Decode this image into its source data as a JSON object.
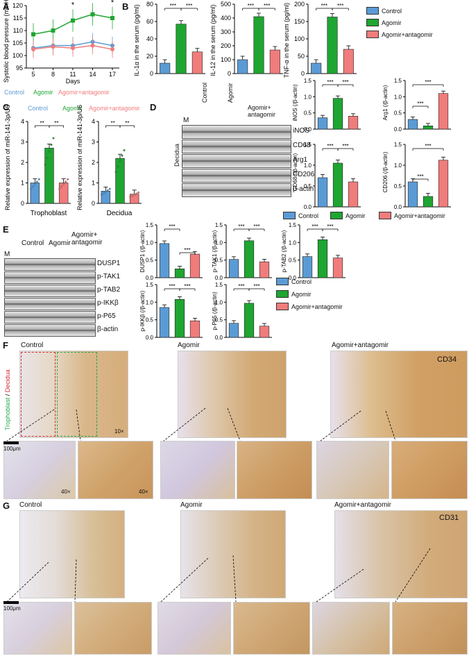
{
  "colors": {
    "control": "#5b9bd5",
    "agomir": "#1fa531",
    "antag": "#f07c7c",
    "dash_red": "#d42a2a",
    "dash_green": "#23a84a"
  },
  "panels": {
    "A": "A",
    "B": "B",
    "C": "C",
    "D": "D",
    "E": "E",
    "F": "F",
    "G": "G"
  },
  "legend": {
    "control": "Control",
    "agomir": "Agomir",
    "antag": "Agomir+antagomir"
  },
  "panelA": {
    "ylabel": "Systolic blood pressure (mmHg)",
    "xlabel": "Days",
    "yticks": [
      "95",
      "100",
      "105",
      "110",
      "115",
      "120"
    ],
    "xticks": [
      "5",
      "8",
      "11",
      "14",
      "17"
    ],
    "stars": "*",
    "legend_control": "Control",
    "legend_agomir": "Agomir",
    "legend_antag": "Agomir+antagomir"
  },
  "panelB": {
    "il1": {
      "ylabel": "IL-1α in the serum (pg/ml)",
      "yticks": [
        "0",
        "20",
        "40",
        "60",
        "80"
      ]
    },
    "il12": {
      "ylabel": "IL-12 in the serum (pg/ml)",
      "yticks": [
        "0",
        "100",
        "200",
        "300",
        "400",
        "500"
      ]
    },
    "tnf": {
      "ylabel": "TNF-α in the serum (pg/ml)",
      "yticks": [
        "0",
        "50",
        "100",
        "150",
        "200"
      ]
    },
    "sig": "***"
  },
  "panelC": {
    "legend_control": "Control",
    "legend_agomir": "Agomir",
    "legend_antag": "Agomir+antagomir",
    "ylabel": "Relative expression of miR-141-3p/U6",
    "troph_yticks": [
      "0",
      "1",
      "2",
      "3",
      "4"
    ],
    "decid_yticks": [
      "0",
      "1",
      "2",
      "3",
      "4"
    ],
    "troph_label": "Trophoblast",
    "decid_label": "Decidua",
    "sig": "**"
  },
  "panelD": {
    "cols": [
      "Control",
      "Agomir",
      "Agomir+ antagomir"
    ],
    "marker": "M",
    "side": "Decidua",
    "bands": [
      "iNOS",
      "CD68",
      "Arg1",
      "CD206",
      "β-actin"
    ],
    "inos": {
      "ylabel": "iNOS (/β-actin)",
      "yticks": [
        "0.0",
        "0.5",
        "1.0",
        "1.5"
      ]
    },
    "arg1": {
      "ylabel": "Arg1 (/β-actin)",
      "yticks": [
        "0.0",
        "0.5",
        "1.0",
        "1.5"
      ]
    },
    "cd68": {
      "ylabel": "CD68 (/β-actin)",
      "yticks": [
        "0.0",
        "0.5",
        "1.0",
        "1.5"
      ]
    },
    "cd206": {
      "ylabel": "CD206 (/β-actin)",
      "yticks": [
        "0.0",
        "0.5",
        "1.0",
        "1.5"
      ]
    },
    "sig": "***"
  },
  "panelE": {
    "cols": [
      "Control",
      "Agomir",
      "Agomir+ antagomir"
    ],
    "marker": "M",
    "bands": [
      "DUSP1",
      "p-TAK1",
      "p-TAB2",
      "p-IKKβ",
      "p-P65",
      "β-actin"
    ],
    "dusp1": {
      "ylabel": "DUSP1 (/β-actin)",
      "yticks": [
        "0.0",
        "0.5",
        "1.0",
        "1.5"
      ]
    },
    "ptak1": {
      "ylabel": "p-TAK1 (/β-actin)",
      "yticks": [
        "0.0",
        "0.5",
        "1.0",
        "1.5"
      ]
    },
    "ptab2": {
      "ylabel": "p-TAB2 (/β-actin)",
      "yticks": [
        "0.0",
        "0.5",
        "1.0",
        "1.5"
      ]
    },
    "pikk": {
      "ylabel": "p-IKKβ (/β-actin)",
      "yticks": [
        "0.0",
        "0.5",
        "1.0",
        "1.5"
      ]
    },
    "pp65": {
      "ylabel": "p-P65 (/β-actin)",
      "yticks": [
        "0.0",
        "0.5",
        "1.0",
        "1.5"
      ]
    },
    "sig": "***"
  },
  "panelF": {
    "control": "Control",
    "agomir": "Agomir",
    "antag": "Agomir+antagomir",
    "marker": "CD34",
    "side_green": "Trophoblast",
    "side_slash": " / ",
    "side_red": "Decidua",
    "mag10": "10×",
    "mag40a": "40×",
    "mag40b": "40×",
    "scale": "100μm"
  },
  "panelG": {
    "control": "Control",
    "agomir": "Agomir",
    "antag": "Agomir+antagomir",
    "marker": "CD31",
    "scale": "100μm"
  },
  "chart_data": [
    {
      "type": "line",
      "id": "A",
      "x": [
        5,
        8,
        11,
        14,
        17
      ],
      "ylim": [
        95,
        120
      ],
      "xlabel": "Days",
      "ylabel": "Systolic blood pressure (mmHg)",
      "series": [
        {
          "name": "Control",
          "values": [
            103,
            104,
            104,
            105.5,
            104
          ]
        },
        {
          "name": "Agomir",
          "values": [
            108.5,
            110,
            114,
            116.5,
            115
          ]
        },
        {
          "name": "Agomir+antagomir",
          "values": [
            102.5,
            103.5,
            103,
            104,
            102.5
          ]
        }
      ]
    },
    {
      "type": "bar",
      "id": "B-IL1a",
      "categories": [
        "Control",
        "Agomir",
        "Agomir+antagomir"
      ],
      "values": [
        12,
        57,
        25
      ],
      "ylim": [
        0,
        80
      ],
      "ylabel": "IL-1α in the serum (pg/ml)"
    },
    {
      "type": "bar",
      "id": "B-IL12",
      "categories": [
        "Control",
        "Agomir",
        "Agomir+antagomir"
      ],
      "values": [
        100,
        410,
        170
      ],
      "ylim": [
        0,
        500
      ],
      "ylabel": "IL-12 in the serum (pg/ml)"
    },
    {
      "type": "bar",
      "id": "B-TNFa",
      "categories": [
        "Control",
        "Agomir",
        "Agomir+antagomir"
      ],
      "values": [
        30,
        163,
        70
      ],
      "ylim": [
        0,
        200
      ],
      "ylabel": "TNF-α in the serum (pg/ml)"
    },
    {
      "type": "bar",
      "id": "C-Trophoblast",
      "categories": [
        "Control",
        "Agomir",
        "Agomir+antagomir"
      ],
      "values": [
        1.0,
        2.7,
        1.0
      ],
      "ylim": [
        0,
        4
      ],
      "ylabel": "Relative expression of miR-141-3p/U6"
    },
    {
      "type": "bar",
      "id": "C-Decidua",
      "categories": [
        "Control",
        "Agomir",
        "Agomir+antagomir"
      ],
      "values": [
        0.6,
        2.2,
        0.45
      ],
      "ylim": [
        0,
        4
      ],
      "ylabel": "Relative expression of miR-141-3p/U6"
    },
    {
      "type": "bar",
      "id": "D-iNOS",
      "categories": [
        "Control",
        "Agomir",
        "Agomir+antagomir"
      ],
      "values": [
        0.35,
        0.95,
        0.4
      ],
      "ylim": [
        0,
        1.5
      ]
    },
    {
      "type": "bar",
      "id": "D-Arg1",
      "categories": [
        "Control",
        "Agomir",
        "Agomir+antagomir"
      ],
      "values": [
        0.3,
        0.1,
        1.1
      ],
      "ylim": [
        0,
        1.5
      ]
    },
    {
      "type": "bar",
      "id": "D-CD68",
      "categories": [
        "Control",
        "Agomir",
        "Agomir+antagomir"
      ],
      "values": [
        0.7,
        1.05,
        0.6
      ],
      "ylim": [
        0,
        1.5
      ]
    },
    {
      "type": "bar",
      "id": "D-CD206",
      "categories": [
        "Control",
        "Agomir",
        "Agomir+antagomir"
      ],
      "values": [
        0.6,
        0.25,
        1.12
      ],
      "ylim": [
        0,
        1.5
      ]
    },
    {
      "type": "bar",
      "id": "E-DUSP1",
      "categories": [
        "Control",
        "Agomir",
        "Agomir+antagomir"
      ],
      "values": [
        0.97,
        0.25,
        0.67
      ],
      "ylim": [
        0,
        1.5
      ]
    },
    {
      "type": "bar",
      "id": "E-pTAK1",
      "categories": [
        "Control",
        "Agomir",
        "Agomir+antagomir"
      ],
      "values": [
        0.52,
        1.05,
        0.45
      ],
      "ylim": [
        0,
        1.5
      ]
    },
    {
      "type": "bar",
      "id": "E-pTAB2",
      "categories": [
        "Control",
        "Agomir",
        "Agomir+antagomir"
      ],
      "values": [
        0.6,
        1.08,
        0.56
      ],
      "ylim": [
        0,
        1.5
      ]
    },
    {
      "type": "bar",
      "id": "E-pIKKb",
      "categories": [
        "Control",
        "Agomir",
        "Agomir+antagomir"
      ],
      "values": [
        0.85,
        1.08,
        0.47
      ],
      "ylim": [
        0,
        1.5
      ]
    },
    {
      "type": "bar",
      "id": "E-pP65",
      "categories": [
        "Control",
        "Agomir",
        "Agomir+antagomir"
      ],
      "values": [
        0.4,
        0.97,
        0.32
      ],
      "ylim": [
        0,
        1.5
      ]
    }
  ]
}
